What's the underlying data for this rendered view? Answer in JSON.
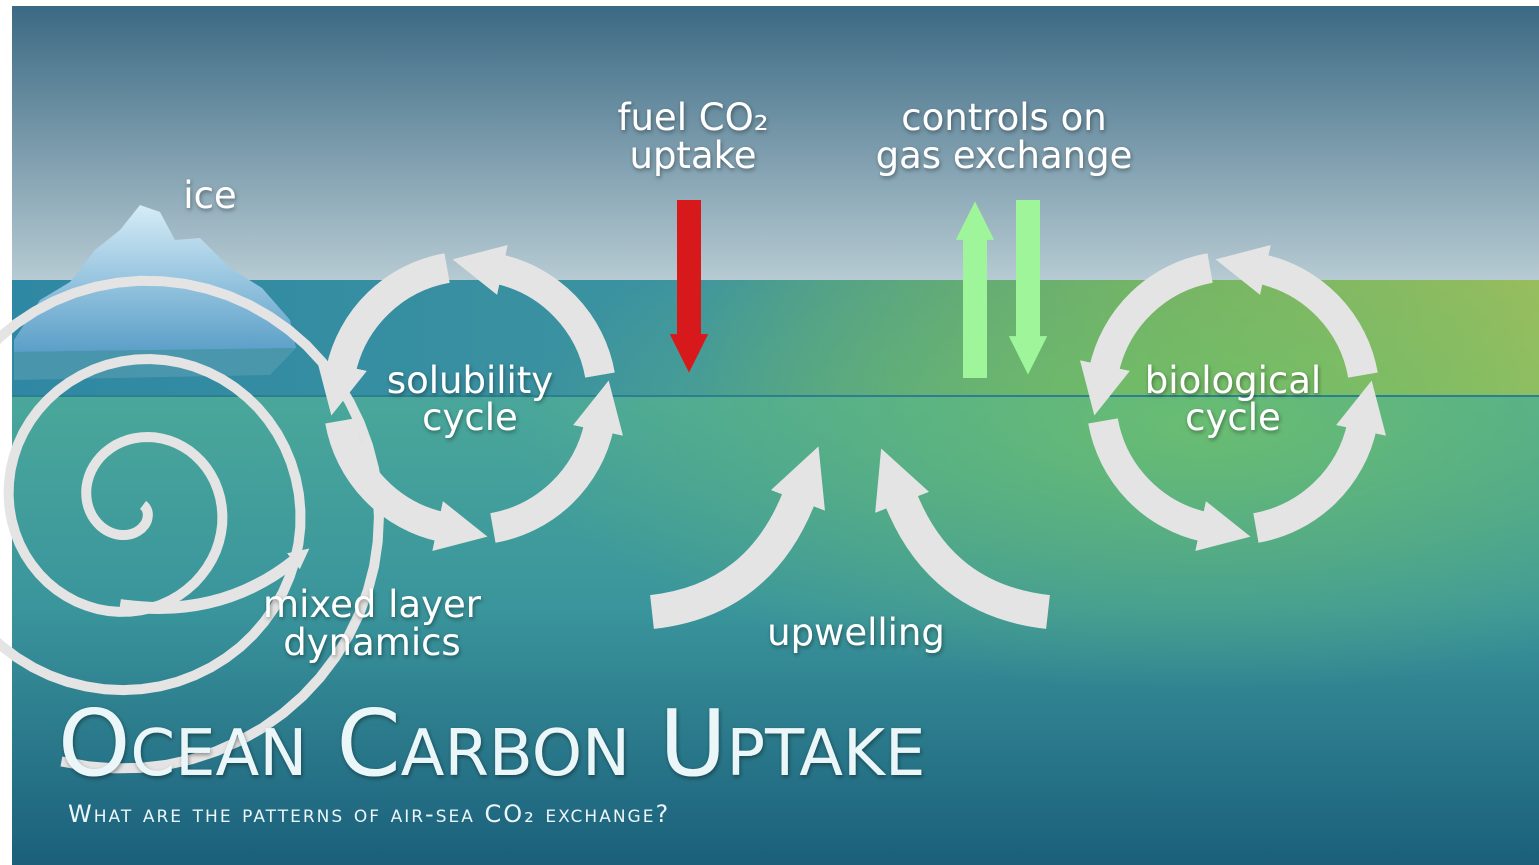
{
  "labels": {
    "ice": "ice",
    "fuel": [
      "fuel CO₂",
      "uptake"
    ],
    "controls": [
      "controls on",
      "gas exchange"
    ],
    "solubility": [
      "solubility",
      "cycle"
    ],
    "biological": [
      "biological",
      "cycle"
    ],
    "mixed": [
      "mixed layer",
      "dynamics"
    ],
    "upwelling": "upwelling"
  },
  "title": "Ocean Carbon Uptake",
  "subtitle": "What are the patterns of air-sea CO₂ exchange?"
}
